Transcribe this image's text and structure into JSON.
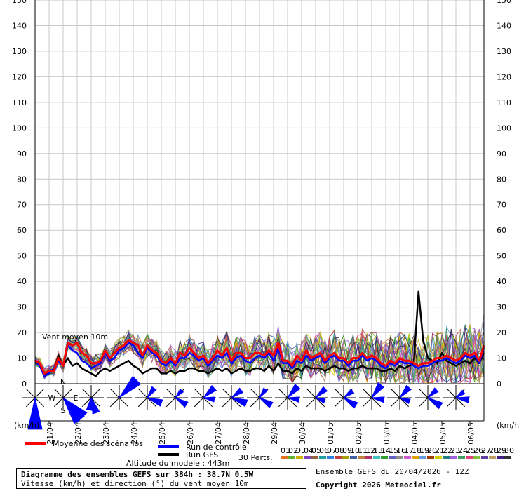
{
  "chart_data": {
    "type": "line",
    "title": "Diagramme des ensembles GEFS sur 384h : 38.7N 0.5W",
    "subtitle": "Vitesse (km/h) et direction (°) du vent moyen 10m",
    "in_plot_label": "Vent moyen 10m",
    "unit_left": "(km/h)",
    "unit_right": "(km/h)",
    "ylim": [
      0,
      150
    ],
    "y_ticks": [
      0,
      10,
      20,
      30,
      40,
      50,
      60,
      70,
      80,
      90,
      100,
      110,
      120,
      130,
      140,
      150
    ],
    "x_tick_labels": [
      "21/04",
      "22/04",
      "23/04",
      "24/04",
      "25/04",
      "26/04",
      "27/04",
      "28/04",
      "29/04",
      "30/04",
      "01/05",
      "02/05",
      "03/05",
      "04/05",
      "05/05",
      "06/05"
    ],
    "grid": true,
    "hours": [
      0,
      12,
      24,
      36,
      48,
      60,
      72,
      84,
      96,
      108,
      120,
      132,
      144,
      156,
      168,
      180,
      192,
      204,
      216,
      228,
      240,
      252,
      264,
      276,
      288,
      300,
      312,
      324,
      336,
      348,
      360,
      372,
      384
    ],
    "series": [
      {
        "name": "Moyenne des scénarios",
        "color": "#ff0000",
        "values": [
          9,
          8,
          4,
          5,
          5,
          10,
          7,
          16,
          15,
          16,
          12,
          11,
          8,
          8,
          9,
          13,
          10,
          12,
          14,
          15,
          17,
          16,
          15,
          11,
          15,
          13,
          12,
          9,
          8,
          10,
          8,
          12,
          11,
          14,
          12,
          10,
          11,
          8,
          10,
          13,
          11,
          14,
          9,
          12,
          12,
          10,
          10,
          12,
          12,
          11,
          13,
          11,
          16,
          9,
          9,
          7,
          11,
          9,
          13,
          10,
          11,
          12,
          9,
          11,
          12,
          10,
          10,
          8,
          10,
          10,
          12,
          10,
          11,
          10,
          8,
          7,
          9,
          8,
          10,
          9,
          9,
          8,
          7,
          8,
          8,
          9,
          10,
          10,
          11,
          10,
          9,
          10,
          12,
          11,
          12,
          9,
          15
        ]
      },
      {
        "name": "Run de contrôle",
        "color": "#0000ff",
        "values": [
          9,
          7,
          3,
          4,
          6,
          9,
          7,
          15,
          13,
          12,
          9,
          8,
          6,
          7,
          8,
          12,
          9,
          10,
          13,
          14,
          16,
          15,
          12,
          10,
          14,
          12,
          11,
          8,
          7,
          9,
          7,
          10,
          10,
          12,
          11,
          9,
          10,
          7,
          9,
          11,
          10,
          12,
          8,
          10,
          11,
          9,
          8,
          10,
          11,
          10,
          12,
          9,
          14,
          8,
          8,
          6,
          9,
          8,
          11,
          9,
          10,
          11,
          8,
          10,
          11,
          9,
          9,
          7,
          9,
          9,
          11,
          9,
          10,
          9,
          7,
          6,
          8,
          7,
          9,
          8,
          8,
          7,
          6,
          7,
          7,
          8,
          9,
          9,
          10,
          9,
          8,
          9,
          11,
          10,
          11,
          8,
          14
        ]
      },
      {
        "name": "Run GFS",
        "color": "#000000",
        "values": [
          9,
          8,
          3,
          5,
          5,
          11,
          7,
          10,
          7,
          8,
          6,
          5,
          4,
          3,
          5,
          6,
          5,
          6,
          7,
          8,
          9,
          7,
          6,
          4,
          5,
          6,
          6,
          4,
          4,
          5,
          4,
          5,
          5,
          6,
          6,
          5,
          5,
          4,
          5,
          6,
          5,
          6,
          4,
          5,
          6,
          5,
          5,
          6,
          6,
          5,
          7,
          5,
          8,
          5,
          5,
          4,
          6,
          5,
          7,
          6,
          6,
          6,
          5,
          6,
          7,
          6,
          6,
          5,
          6,
          6,
          7,
          6,
          6,
          6,
          5,
          5,
          6,
          5,
          7,
          6,
          7,
          8,
          36,
          17,
          10,
          9,
          8,
          12,
          9,
          8,
          7,
          8,
          9,
          8,
          10,
          8,
          12
        ]
      }
    ],
    "members_label": "30 Perts.",
    "member_ids": [
      "01",
      "02",
      "03",
      "04",
      "05",
      "06",
      "07",
      "08",
      "09",
      "10",
      "11",
      "12",
      "13",
      "14",
      "15",
      "16",
      "17",
      "18",
      "19",
      "20",
      "21",
      "22",
      "23",
      "24",
      "25",
      "26",
      "27",
      "28",
      "29",
      "30"
    ],
    "member_colors": [
      "#e07020",
      "#60b030",
      "#d0b000",
      "#8040c0",
      "#906040",
      "#20a0a0",
      "#3080e0",
      "#c04040",
      "#a0a000",
      "#4060a0",
      "#c08040",
      "#b0306a",
      "#40c0c0",
      "#30a030",
      "#6060c0",
      "#909090",
      "#d060d0",
      "#e0a000",
      "#60a0e0",
      "#a04000",
      "#d0d000",
      "#208080",
      "#a060e0",
      "#40a060",
      "#e04080",
      "#80c040",
      "#6040a0",
      "#c0a060",
      "#402080",
      "#303030"
    ],
    "altitude": "Altitude du modele : 443m",
    "run_info": "Ensemble GEFS du 20/04/2026 - 12Z",
    "copyright": "Copyright 2026 Meteociel.fr"
  }
}
